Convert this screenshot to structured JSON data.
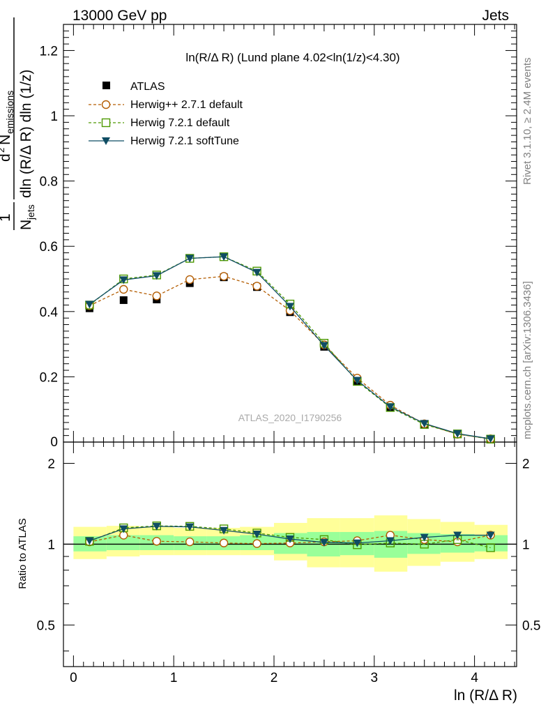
{
  "header": {
    "left": "13000 GeV pp",
    "right": "Jets",
    "side_rivet": "Rivet 3.1.10, ≥ 2.4M events",
    "side_mcplots": "mcplots.cern.ch [arXiv:1306.3436]",
    "watermark": "ATLAS_2020_I1790256"
  },
  "chart_data": [
    {
      "type": "scatter",
      "title": "ln(R/Δ R) (Lund plane 4.02<ln(1/z)<4.30)",
      "ylabel": "1/N_jets d² N_emissions / dln (R/Δ R) dln (1/z)",
      "xlabel": "ln (R/Δ R)",
      "xlim": [
        -0.1,
        4.42
      ],
      "ylim": [
        0,
        1.28
      ],
      "yticks": [
        0.2,
        0.4,
        0.6,
        0.8,
        1,
        1.2
      ],
      "ytick_labels": [
        "0.2",
        "0.4",
        "0.6",
        "0.8",
        "1",
        "1.2"
      ],
      "bottom_cut_label": "0",
      "x": [
        0.16,
        0.5,
        0.83,
        1.16,
        1.5,
        1.83,
        2.16,
        2.5,
        2.83,
        3.16,
        3.5,
        3.83,
        4.16
      ],
      "series": [
        {
          "name": "ATLAS",
          "style": "data",
          "color": "#000000",
          "values": [
            0.41,
            0.435,
            0.437,
            0.487,
            0.505,
            0.475,
            0.398,
            0.292,
            0.187,
            0.105,
            0.054,
            0.024,
            0.009
          ]
        },
        {
          "name": "Herwig++ 2.7.1 default",
          "style": "open-circle-dashed",
          "color": "#b35c00",
          "values": [
            0.418,
            0.468,
            0.448,
            0.498,
            0.508,
            0.478,
            0.403,
            0.298,
            0.196,
            0.113,
            0.056,
            0.024,
            0.01
          ]
        },
        {
          "name": "Herwig 7.2.1 default",
          "style": "open-square-dashed",
          "color": "#4d9900",
          "values": [
            0.42,
            0.5,
            0.512,
            0.563,
            0.568,
            0.524,
            0.423,
            0.303,
            0.186,
            0.106,
            0.054,
            0.025,
            0.009
          ]
        },
        {
          "name": "Herwig 7.2.1 softTune",
          "style": "filled-triangle-solid",
          "color": "#0f4d63",
          "values": [
            0.422,
            0.497,
            0.51,
            0.563,
            0.568,
            0.52,
            0.416,
            0.296,
            0.189,
            0.108,
            0.057,
            0.026,
            0.01
          ]
        }
      ]
    },
    {
      "type": "scatter",
      "ylabel": "Ratio to ATLAS",
      "xlabel": "ln (R/Δ R)",
      "xlim": [
        -0.1,
        4.42
      ],
      "ylim": [
        0.35,
        2.4
      ],
      "yticks": [
        0.5,
        1,
        2
      ],
      "ytick_labels": [
        "0.5",
        "1",
        "2"
      ],
      "xticks": [
        0,
        1,
        2,
        3,
        4
      ],
      "xtick_labels": [
        "0",
        "1",
        "2",
        "3",
        "4"
      ],
      "x": [
        0.16,
        0.5,
        0.83,
        1.16,
        1.5,
        1.83,
        2.16,
        2.5,
        2.83,
        3.16,
        3.5,
        3.83,
        4.16
      ],
      "bin_edges": [
        0,
        0.33,
        0.66,
        1.0,
        1.33,
        1.66,
        2.0,
        2.33,
        2.66,
        3.0,
        3.33,
        3.66,
        4.0,
        4.33
      ],
      "band_stat": {
        "lo": [
          0.94,
          0.95,
          0.95,
          0.95,
          0.95,
          0.95,
          0.92,
          0.9,
          0.91,
          0.89,
          0.92,
          0.93,
          0.94
        ],
        "hi": [
          1.07,
          1.08,
          1.08,
          1.07,
          1.07,
          1.08,
          1.1,
          1.11,
          1.11,
          1.12,
          1.1,
          1.09,
          1.08
        ]
      },
      "band_total": {
        "lo": [
          0.88,
          0.9,
          0.91,
          0.91,
          0.91,
          0.91,
          0.87,
          0.82,
          0.82,
          0.79,
          0.83,
          0.86,
          0.88
        ],
        "hi": [
          1.16,
          1.17,
          1.16,
          1.15,
          1.15,
          1.16,
          1.2,
          1.25,
          1.25,
          1.28,
          1.24,
          1.21,
          1.18
        ]
      },
      "series": [
        {
          "name": "Herwig++ 2.7.1 default",
          "style": "open-circle-dashed",
          "color": "#b35c00",
          "values": [
            1.02,
            1.08,
            1.025,
            1.02,
            1.01,
            1.005,
            1.01,
            1.02,
            1.03,
            1.08,
            1.04,
            1.02,
            1.08
          ]
        },
        {
          "name": "Herwig 7.2.1 default",
          "style": "open-square-dashed",
          "color": "#4d9900",
          "values": [
            1.025,
            1.15,
            1.17,
            1.165,
            1.14,
            1.1,
            1.06,
            1.04,
            0.995,
            1.01,
            1.0,
            1.04,
            0.97
          ]
        },
        {
          "name": "Herwig 7.2.1 softTune",
          "style": "filled-triangle-solid",
          "color": "#0f4d63",
          "values": [
            1.03,
            1.14,
            1.165,
            1.16,
            1.125,
            1.09,
            1.045,
            1.015,
            1.01,
            1.03,
            1.06,
            1.08,
            1.08
          ]
        }
      ]
    }
  ],
  "colors": {
    "stat_band": "#99ff99",
    "total_band": "#ffff99",
    "axis": "#000000",
    "side_text": "#808080"
  }
}
